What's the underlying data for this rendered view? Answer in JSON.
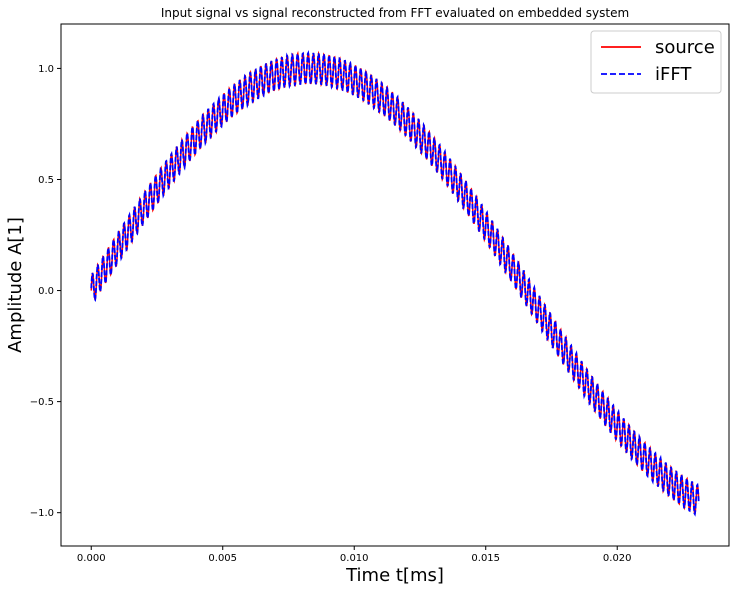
{
  "chart_data": {
    "type": "line",
    "title": "Input signal vs signal reconstructed from FFT evaluated on embedded system",
    "xlabel": "Time t[ms]",
    "ylabel": "Amplitude A[1]",
    "xlim": [
      -0.00115,
      0.02425
    ],
    "ylim": [
      -1.15,
      1.2
    ],
    "xticks": [
      0.0,
      0.005,
      0.01,
      0.015,
      0.02
    ],
    "xtick_labels": [
      "0.000",
      "0.005",
      "0.010",
      "0.015",
      "0.020"
    ],
    "yticks": [
      -1.0,
      -0.5,
      0.0,
      0.5,
      1.0
    ],
    "ytick_labels": [
      "−1.0",
      "−0.5",
      "0.0",
      "0.5",
      "1.0"
    ],
    "grid": false,
    "legend_position": "top-right",
    "signal": {
      "x_start": 0.0,
      "x_end": 0.0231,
      "carrier_amplitude": 1.0,
      "carrier_period": 0.0331,
      "ripple_amplitude": 0.07,
      "ripple_period": 0.0002,
      "samples": 1400
    },
    "series": [
      {
        "name": "source",
        "color": "#ff0000",
        "style": "solid"
      },
      {
        "name": "iFFT",
        "color": "#0000ff",
        "style": "dashed"
      }
    ]
  }
}
